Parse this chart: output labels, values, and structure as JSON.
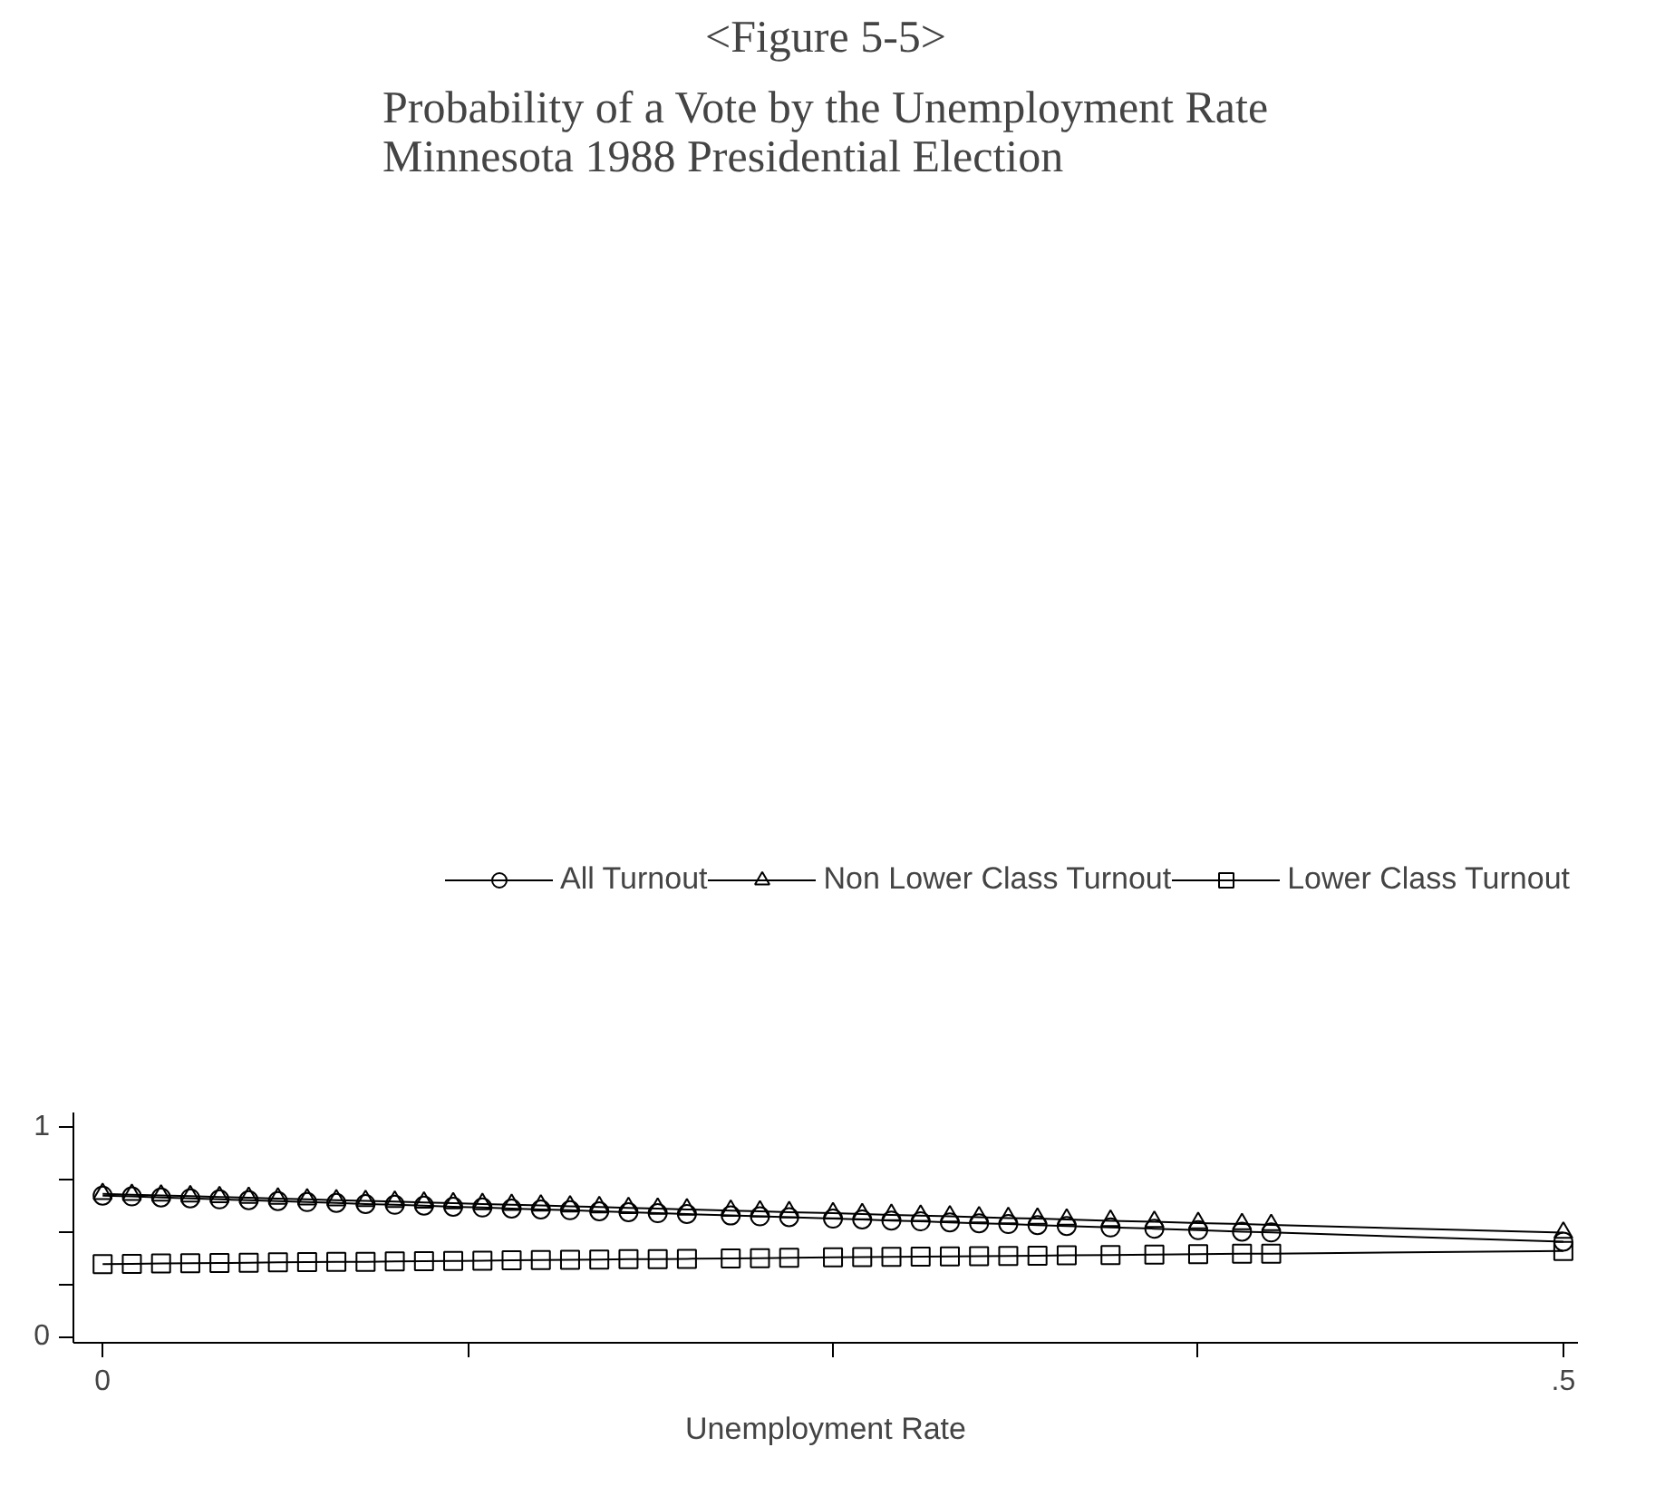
{
  "chart_data": {
    "type": "line",
    "title": "<Figure 5-5>",
    "subtitle": "Probability of a Vote by the Unemployment Rate\nMinnesota 1988 Presidential Election",
    "xlabel": "Unemployment Rate",
    "x": [
      0,
      0.01,
      0.02,
      0.03,
      0.04,
      0.05,
      0.06,
      0.07,
      0.08,
      0.09,
      0.1,
      0.11,
      0.12,
      0.13,
      0.14,
      0.15,
      0.16,
      0.17,
      0.18,
      0.19,
      0.2,
      0.215,
      0.225,
      0.235,
      0.25,
      0.26,
      0.27,
      0.28,
      0.29,
      0.3,
      0.31,
      0.32,
      0.33,
      0.345,
      0.36,
      0.375,
      0.39,
      0.4,
      0.5
    ],
    "series": [
      {
        "name": "All Turnout",
        "color": "#000000",
        "marker": "circle",
        "values": [
          0.673,
          0.669,
          0.664,
          0.66,
          0.655,
          0.651,
          0.647,
          0.642,
          0.638,
          0.633,
          0.629,
          0.625,
          0.62,
          0.616,
          0.611,
          0.607,
          0.603,
          0.598,
          0.594,
          0.589,
          0.585,
          0.578,
          0.574,
          0.57,
          0.563,
          0.559,
          0.554,
          0.55,
          0.545,
          0.541,
          0.537,
          0.532,
          0.528,
          0.521,
          0.515,
          0.508,
          0.501,
          0.497,
          0.453
        ]
      },
      {
        "name": "Non Lower Class Turnout",
        "color": "#000000",
        "marker": "triangle",
        "values": [
          0.681,
          0.677,
          0.674,
          0.67,
          0.666,
          0.663,
          0.659,
          0.655,
          0.651,
          0.648,
          0.644,
          0.64,
          0.637,
          0.633,
          0.629,
          0.626,
          0.622,
          0.618,
          0.614,
          0.611,
          0.607,
          0.601,
          0.598,
          0.594,
          0.589,
          0.585,
          0.581,
          0.577,
          0.574,
          0.57,
          0.566,
          0.563,
          0.559,
          0.553,
          0.548,
          0.542,
          0.537,
          0.533,
          0.496
        ]
      },
      {
        "name": "Lower Class Turnout",
        "color": "#000000",
        "marker": "square",
        "values": [
          0.346,
          0.347,
          0.349,
          0.35,
          0.351,
          0.352,
          0.354,
          0.355,
          0.356,
          0.357,
          0.359,
          0.36,
          0.361,
          0.362,
          0.364,
          0.365,
          0.366,
          0.367,
          0.369,
          0.37,
          0.371,
          0.373,
          0.374,
          0.376,
          0.378,
          0.379,
          0.38,
          0.381,
          0.383,
          0.384,
          0.385,
          0.386,
          0.388,
          0.389,
          0.391,
          0.393,
          0.395,
          0.396,
          0.409
        ]
      }
    ],
    "xlim": [
      -0.01,
      0.505
    ],
    "ylim": [
      -0.03,
      1.07
    ],
    "xticks": [
      0,
      {
        "value": 0.125,
        "label": null
      },
      {
        "value": 0.25,
        "label": null
      },
      {
        "value": 0.375,
        "label": null
      },
      {
        "value": 0.5,
        "label": ".5"
      }
    ],
    "yticks": [
      0,
      {
        "value": 0.25,
        "label": null
      },
      {
        "value": 0.5,
        "label": null
      },
      {
        "value": 0.75,
        "label": null
      },
      1
    ],
    "grid": false,
    "legend": "top",
    "line_style": "solid"
  }
}
